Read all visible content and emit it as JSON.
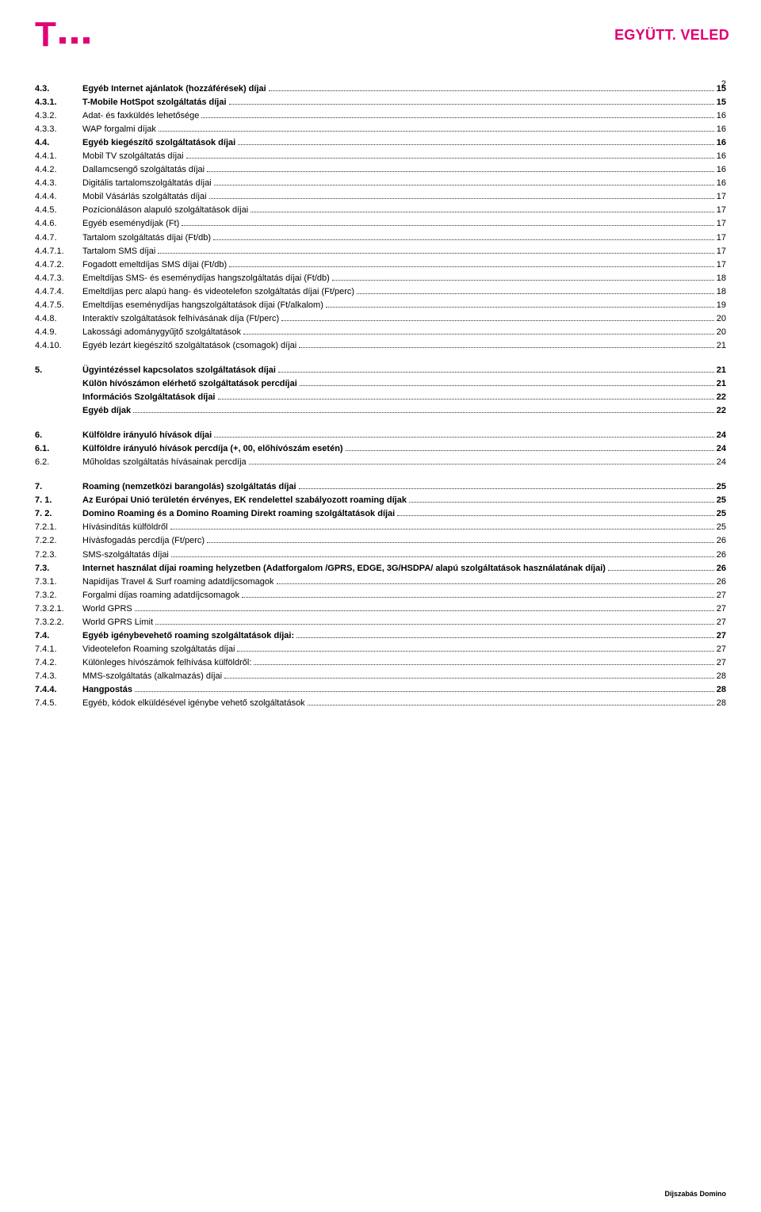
{
  "brand_color": "#e20074",
  "tagline": "EGYÜTT. VELED",
  "page_number": "2",
  "footer": "Díjszabás Domino",
  "toc_blocks": [
    {
      "rows": [
        {
          "num": "4.3.",
          "title": "Egyéb Internet ajánlatok (hozzáférések) díjai",
          "page": "15",
          "bold": true
        },
        {
          "num": "4.3.1.",
          "title": "T-Mobile HotSpot szolgáltatás díjai",
          "page": "15",
          "bold": true
        },
        {
          "num": "4.3.2.",
          "title": "Adat- és faxküldés lehetősége",
          "page": "16",
          "bold": false
        },
        {
          "num": "4.3.3.",
          "title": "WAP forgalmi díjak",
          "page": "16",
          "bold": false
        },
        {
          "num": "4.4.",
          "title": "Egyéb kiegészítő szolgáltatások díjai",
          "page": "16",
          "bold": true
        },
        {
          "num": "4.4.1.",
          "title": "Mobil TV szolgáltatás díjai",
          "page": "16",
          "bold": false
        },
        {
          "num": "4.4.2.",
          "title": "Dallamcsengő szolgáltatás díjai",
          "page": "16",
          "bold": false
        },
        {
          "num": "4.4.3.",
          "title": "Digitális tartalomszolgáltatás díjai",
          "page": "16",
          "bold": false
        },
        {
          "num": "4.4.4.",
          "title": "Mobil Vásárlás szolgáltatás díjai",
          "page": "17",
          "bold": false
        },
        {
          "num": "4.4.5.",
          "title": "Pozícionáláson alapuló szolgáltatások díjai",
          "page": "17",
          "bold": false
        },
        {
          "num": "4.4.6.",
          "title": "Egyéb eseménydíjak (Ft)",
          "page": "17",
          "bold": false
        },
        {
          "num": "4.4.7.",
          "title": "Tartalom szolgáltatás díjai (Ft/db)",
          "page": "17",
          "bold": false
        },
        {
          "num": "4.4.7.1.",
          "title": "Tartalom SMS díjai",
          "page": "17",
          "bold": false
        },
        {
          "num": "4.4.7.2.",
          "title": "Fogadott emeltdíjas SMS díjai (Ft/db)",
          "page": "17",
          "bold": false
        },
        {
          "num": "4.4.7.3.",
          "title": "Emeltdíjas SMS- és eseménydíjas hangszolgáltatás díjai (Ft/db)",
          "page": "18",
          "bold": false
        },
        {
          "num": "4.4.7.4.",
          "title": "Emeltdíjas perc alapú hang- és videotelefon szolgáltatás díjai (Ft/perc)",
          "page": "18",
          "bold": false
        },
        {
          "num": "4.4.7.5.",
          "title": "Emeltdíjas eseménydíjas hangszolgáltatások díjai (Ft/alkalom)",
          "page": "19",
          "bold": false
        },
        {
          "num": "4.4.8.",
          "title": "Interaktív szolgáltatások felhívásának díja (Ft/perc)",
          "page": "20",
          "bold": false
        },
        {
          "num": "4.4.9.",
          "title": "Lakossági adománygyűjtő szolgáltatások",
          "page": "20",
          "bold": false
        },
        {
          "num": "4.4.10.",
          "title": "Egyéb lezárt kiegészítő szolgáltatások (csomagok) díjai",
          "page": "21",
          "bold": false
        }
      ]
    },
    {
      "rows": [
        {
          "num": "5.",
          "title": "Ügyintézéssel kapcsolatos szolgáltatások díjai",
          "page": "21",
          "bold": true
        },
        {
          "num": "",
          "title": "Külön hívószámon elérhető szolgáltatások percdíjai",
          "page": "21",
          "bold": true
        },
        {
          "num": "",
          "title": "Információs Szolgáltatások díjai",
          "page": "22",
          "bold": true
        },
        {
          "num": "",
          "title": "Egyéb díjak",
          "page": "22",
          "bold": true
        }
      ]
    },
    {
      "rows": [
        {
          "num": "6.",
          "title": "Külföldre irányuló hívások díjai",
          "page": "24",
          "bold": true
        },
        {
          "num": "6.1.",
          "title": "Külföldre irányuló hívások percdíja (+, 00, előhívószám esetén)",
          "page": "24",
          "bold": true
        },
        {
          "num": "6.2.",
          "title": "Műholdas szolgáltatás hívásainak percdíja",
          "page": "24",
          "bold": false
        }
      ]
    },
    {
      "rows": [
        {
          "num": "7.",
          "title": "Roaming (nemzetközi barangolás) szolgáltatás díjai",
          "page": "25",
          "bold": true
        },
        {
          "num": "7. 1.",
          "title": "Az Európai Unió területén érvényes, EK rendelettel szabályozott roaming díjak",
          "page": "25",
          "bold": true
        },
        {
          "num": "7. 2.",
          "title": "Domino Roaming és a Domino Roaming Direkt roaming szolgáltatások díjai",
          "page": "25",
          "bold": true
        },
        {
          "num": "7.2.1.",
          "title": "Hívásindítás külföldről",
          "page": "25",
          "bold": false
        },
        {
          "num": "7.2.2.",
          "title": "Hívásfogadás percdíja (Ft/perc)",
          "page": "26",
          "bold": false
        },
        {
          "num": "7.2.3.",
          "title": "SMS-szolgáltatás díjai",
          "page": "26",
          "bold": false
        },
        {
          "num": "7.3.",
          "title": "Internet használat díjai roaming helyzetben (Adatforgalom /GPRS, EDGE, 3G/HSDPA/ alapú szolgáltatások használatának díjai)",
          "page": "26",
          "bold": true
        },
        {
          "num": "7.3.1.",
          "title": "Napidíjas Travel & Surf roaming adatdíjcsomagok",
          "page": "26",
          "bold": false
        },
        {
          "num": "7.3.2.",
          "title": "Forgalmi díjas roaming adatdíjcsomagok",
          "page": "27",
          "bold": false
        },
        {
          "num": "7.3.2.1.",
          "title": "World GPRS",
          "page": "27",
          "bold": false
        },
        {
          "num": "7.3.2.2.",
          "title": "World GPRS Limit",
          "page": "27",
          "bold": false
        },
        {
          "num": "7.4.",
          "title": "Egyéb igénybevehető roaming szolgáltatások díjai:",
          "page": "27",
          "bold": true
        },
        {
          "num": "7.4.1.",
          "title": "Videotelefon Roaming szolgáltatás díjai",
          "page": "27",
          "bold": false
        },
        {
          "num": "7.4.2.",
          "title": "Különleges hívószámok felhívása külföldről:",
          "page": "27",
          "bold": false
        },
        {
          "num": "7.4.3.",
          "title": "MMS-szolgáltatás (alkalmazás) díjai",
          "page": "28",
          "bold": false
        },
        {
          "num": "7.4.4.",
          "title": "Hangpostás",
          "page": "28",
          "bold": true
        },
        {
          "num": "7.4.5.",
          "title": "Egyéb, kódok elküldésével igénybe vehető szolgáltatások",
          "page": "28",
          "bold": false
        }
      ]
    }
  ]
}
